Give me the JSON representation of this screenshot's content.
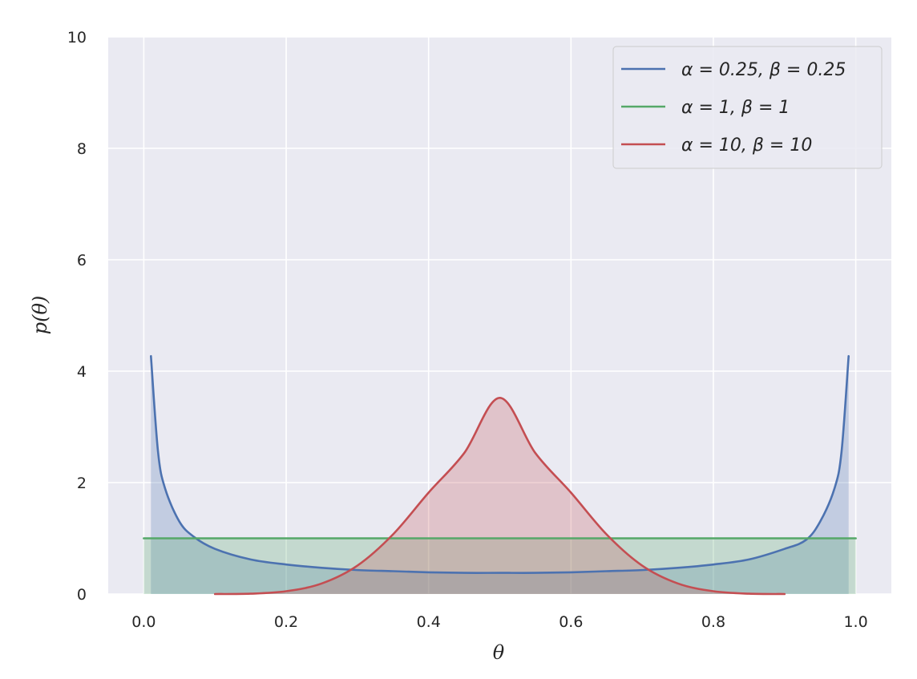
{
  "chart_data": {
    "type": "area",
    "xlabel": "θ",
    "ylabel": "p(θ)",
    "xlim": [
      -0.05,
      1.05
    ],
    "ylim": [
      0,
      10
    ],
    "xticks": [
      0.0,
      0.2,
      0.4,
      0.6,
      0.8,
      1.0
    ],
    "xtick_labels": [
      "0.0",
      "0.2",
      "0.4",
      "0.6",
      "0.8",
      "1.0"
    ],
    "yticks": [
      0,
      2,
      4,
      6,
      8,
      10
    ],
    "ytick_labels": [
      "0",
      "2",
      "4",
      "6",
      "8",
      "10"
    ],
    "grid": true,
    "legend_position": "top-right",
    "series": [
      {
        "name": "α = 0.25, β = 0.25",
        "color": "#4c72b0",
        "x": [
          0.01,
          0.02,
          0.03,
          0.05,
          0.07,
          0.1,
          0.15,
          0.2,
          0.25,
          0.3,
          0.35,
          0.4,
          0.45,
          0.5,
          0.55,
          0.6,
          0.65,
          0.7,
          0.75,
          0.8,
          0.85,
          0.9,
          0.93,
          0.95,
          0.97,
          0.98,
          0.99
        ],
        "y": [
          4.27,
          2.55,
          1.89,
          1.3,
          1.03,
          0.81,
          0.62,
          0.53,
          0.47,
          0.43,
          0.41,
          0.39,
          0.38,
          0.38,
          0.38,
          0.39,
          0.41,
          0.43,
          0.47,
          0.53,
          0.62,
          0.81,
          0.97,
          1.3,
          1.89,
          2.55,
          4.27
        ]
      },
      {
        "name": "α = 1, β = 1",
        "color": "#55a868",
        "x": [
          0.0,
          1.0
        ],
        "y": [
          1.0,
          1.0
        ]
      },
      {
        "name": "α = 10, β = 10",
        "color": "#c44e52",
        "x": [
          0.1,
          0.15,
          0.2,
          0.25,
          0.3,
          0.35,
          0.4,
          0.45,
          0.5,
          0.55,
          0.6,
          0.65,
          0.7,
          0.75,
          0.8,
          0.85,
          0.9
        ],
        "y": [
          0.0,
          0.006,
          0.05,
          0.19,
          0.51,
          1.07,
          1.82,
          2.53,
          3.52,
          2.53,
          1.82,
          1.07,
          0.51,
          0.19,
          0.05,
          0.006,
          0.0
        ]
      }
    ]
  }
}
